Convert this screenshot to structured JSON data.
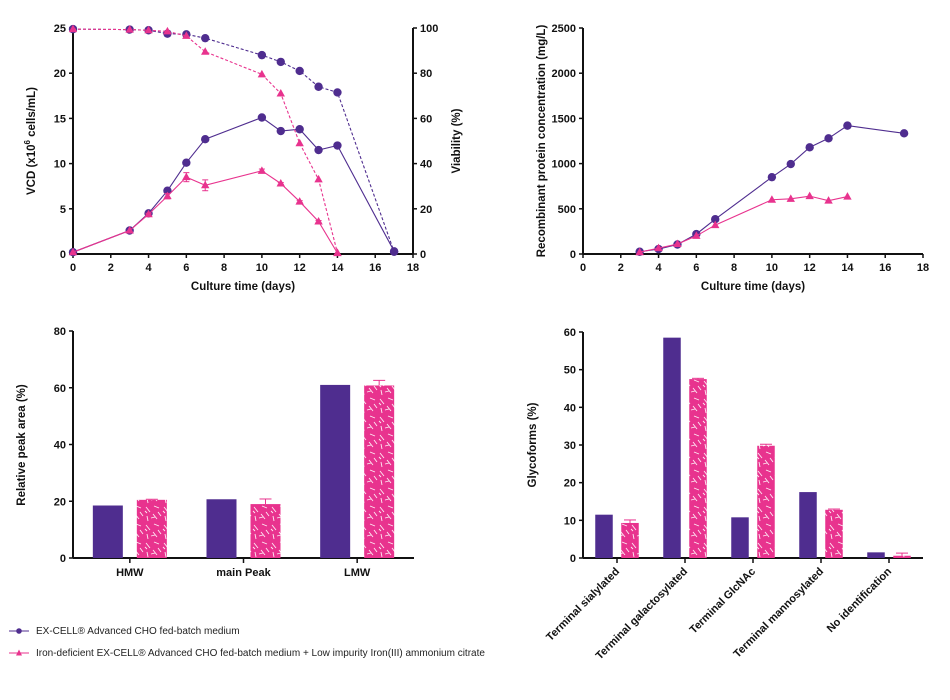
{
  "colors": {
    "series_a": "#4F2D8F",
    "series_b": "#E8338E"
  },
  "legend": {
    "items": [
      {
        "label": "EX-CELL® Advanced CHO fed-batch medium",
        "marker": "circle",
        "color": "#4F2D8F"
      },
      {
        "label": "Iron-deficient EX-CELL® Advanced CHO fed-batch medium + Low impurity Iron(III) ammonium citrate",
        "marker": "triangle",
        "color": "#E8338E"
      }
    ]
  },
  "chart_data": [
    {
      "id": "vcd-viability",
      "type": "line",
      "xlabel": "Culture time (days)",
      "ylabel": "VCD (x10^6 cells/mL)",
      "ylabel_parts": {
        "pre": "VCD (x10",
        "sup": "6",
        "post": " cells/mL)"
      },
      "y2label": "Viability (%)",
      "xlim": [
        0,
        18
      ],
      "xticks": [
        0,
        2,
        4,
        6,
        8,
        10,
        12,
        14,
        16,
        18
      ],
      "ylim": [
        0,
        25
      ],
      "yticks": [
        0,
        5,
        10,
        15,
        20,
        25
      ],
      "y2lim": [
        0,
        100
      ],
      "y2ticks": [
        0,
        20,
        40,
        60,
        80,
        100
      ],
      "grid": false,
      "series": [
        {
          "name": "EX-CELL VCD",
          "axis": "left",
          "style": "solid",
          "marker": "circle",
          "color": "#4F2D8F",
          "x": [
            0,
            3,
            4,
            5,
            6,
            7,
            10,
            11,
            12,
            13,
            14,
            17
          ],
          "y": [
            0.2,
            2.6,
            4.5,
            7.0,
            10.1,
            12.7,
            15.1,
            13.6,
            13.8,
            11.5,
            12.0,
            0.3
          ]
        },
        {
          "name": "Iron VCD",
          "axis": "left",
          "style": "solid",
          "marker": "triangle",
          "color": "#E8338E",
          "x": [
            0,
            3,
            4,
            5,
            6,
            7,
            10,
            11,
            12,
            13,
            14
          ],
          "y": [
            0.2,
            2.6,
            4.4,
            6.4,
            8.5,
            7.6,
            9.2,
            7.8,
            5.8,
            3.6,
            0.1
          ],
          "err": [
            0,
            0,
            0.1,
            0.3,
            0.5,
            0.6,
            0.2,
            0.1,
            0.1,
            0.1,
            0
          ]
        },
        {
          "name": "EX-CELL Viability",
          "axis": "right",
          "style": "dashed",
          "marker": "circle",
          "color": "#4F2D8F",
          "x": [
            0,
            3,
            4,
            5,
            6,
            7,
            10,
            11,
            12,
            13,
            14,
            17
          ],
          "y": [
            99.5,
            99.3,
            99.0,
            97.5,
            97.2,
            95.5,
            88.0,
            85.0,
            81.0,
            74.0,
            71.5,
            1.0
          ]
        },
        {
          "name": "Iron Viability",
          "axis": "right",
          "style": "dashed",
          "marker": "triangle",
          "color": "#E8338E",
          "x": [
            0,
            3,
            4,
            5,
            6,
            7,
            10,
            11,
            12,
            13,
            14
          ],
          "y": [
            99.5,
            99.3,
            99.0,
            98.5,
            96.5,
            89.5,
            79.5,
            71.0,
            49.0,
            33.0,
            0.5
          ]
        }
      ]
    },
    {
      "id": "protein-concentration",
      "type": "line",
      "xlabel": "Culture time (days)",
      "ylabel": "Recombinant protein concentration (mg/L)",
      "xlim": [
        0,
        18
      ],
      "xticks": [
        0,
        2,
        4,
        6,
        8,
        10,
        12,
        14,
        16,
        18
      ],
      "ylim": [
        0,
        2500
      ],
      "yticks": [
        0,
        500,
        1000,
        1500,
        2000,
        2500
      ],
      "grid": false,
      "series": [
        {
          "name": "EX-CELL",
          "style": "solid",
          "marker": "circle",
          "color": "#4F2D8F",
          "x": [
            3,
            4,
            5,
            6,
            7,
            10,
            11,
            12,
            13,
            14,
            17
          ],
          "y": [
            25,
            55,
            105,
            220,
            385,
            850,
            995,
            1180,
            1280,
            1420,
            1335
          ]
        },
        {
          "name": "Iron",
          "style": "solid",
          "marker": "triangle",
          "color": "#E8338E",
          "x": [
            3,
            4,
            5,
            6,
            7,
            10,
            11,
            12,
            13,
            14
          ],
          "y": [
            20,
            65,
            110,
            200,
            320,
            600,
            610,
            640,
            590,
            635
          ]
        }
      ]
    },
    {
      "id": "relative-peak-area",
      "type": "bar",
      "ylabel": "Relative peak area (%)",
      "ylim": [
        0,
        80
      ],
      "yticks": [
        0,
        20,
        40,
        60,
        80
      ],
      "categories": [
        "HMW",
        "main Peak",
        "LMW"
      ],
      "grid": false,
      "series": [
        {
          "name": "EX-CELL",
          "color": "#4F2D8F",
          "pattern": false,
          "values": [
            18.5,
            20.7,
            61.0
          ]
        },
        {
          "name": "Iron",
          "color": "#E8338E",
          "pattern": true,
          "values": [
            20.5,
            19.0,
            60.8
          ],
          "err": [
            0.2,
            1.8,
            1.8
          ]
        }
      ]
    },
    {
      "id": "glycoforms",
      "type": "bar",
      "ylabel": "Glycoforms (%)",
      "ylim": [
        0,
        60
      ],
      "yticks": [
        0,
        10,
        20,
        30,
        40,
        50,
        60
      ],
      "categories": [
        "Terminal sialylated",
        "Terminal galactosylated",
        "Terminal GlcNAc",
        "Terminal mannosylated",
        "No identification"
      ],
      "grid": false,
      "series": [
        {
          "name": "EX-CELL",
          "color": "#4F2D8F",
          "pattern": false,
          "values": [
            11.5,
            58.5,
            10.8,
            17.5,
            1.5
          ]
        },
        {
          "name": "Iron",
          "color": "#E8338E",
          "pattern": true,
          "values": [
            9.3,
            47.5,
            29.8,
            12.8,
            0.6
          ],
          "err": [
            0.8,
            0.2,
            0.4,
            0.2,
            0.7
          ]
        }
      ]
    }
  ]
}
